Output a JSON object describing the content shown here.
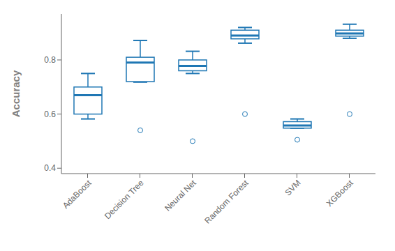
{
  "chart_data": {
    "type": "box",
    "categories": [
      "AdaBoost",
      "Decision Tree",
      "Neural Net",
      "Random Forest",
      "SVM",
      "XGBoost"
    ],
    "boxes": [
      {
        "q1": 0.6,
        "median": 0.67,
        "q3": 0.7,
        "whislo": 0.582,
        "whishi": 0.75,
        "fliers": []
      },
      {
        "q1": 0.72,
        "median": 0.79,
        "q3": 0.81,
        "whislo": 0.718,
        "whishi": 0.872,
        "fliers": [
          0.54
        ]
      },
      {
        "q1": 0.76,
        "median": 0.778,
        "q3": 0.8,
        "whislo": 0.75,
        "whishi": 0.832,
        "fliers": [
          0.5
        ]
      },
      {
        "q1": 0.878,
        "median": 0.89,
        "q3": 0.91,
        "whislo": 0.862,
        "whishi": 0.92,
        "fliers": [
          0.6
        ]
      },
      {
        "q1": 0.548,
        "median": 0.558,
        "q3": 0.572,
        "whislo": 0.548,
        "whishi": 0.582,
        "fliers": [
          0.505
        ]
      },
      {
        "q1": 0.888,
        "median": 0.898,
        "q3": 0.91,
        "whislo": 0.88,
        "whishi": 0.932,
        "fliers": [
          0.6
        ]
      }
    ],
    "color": "#1f77b4",
    "ylabel": "Accuracy",
    "ylim": [
      0.38,
      0.97
    ],
    "yticks": [
      0.4,
      0.6,
      0.8
    ],
    "grid": false
  }
}
